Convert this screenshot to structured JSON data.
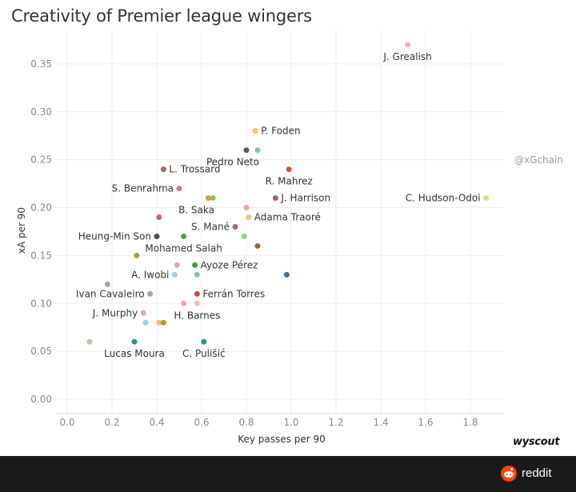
{
  "chart_data": {
    "type": "scatter",
    "title": "Creativity of Premier league wingers",
    "xlabel": "Key passes per 90",
    "ylabel": "xA per 90",
    "xlim": [
      -0.05,
      1.95
    ],
    "ylim": [
      -0.015,
      0.385
    ],
    "xticks": [
      "0.0",
      "0.2",
      "0.4",
      "0.6",
      "0.8",
      "1.0",
      "1.2",
      "1.4",
      "1.6",
      "1.8"
    ],
    "yticks": [
      "0.00",
      "0.05",
      "0.10",
      "0.15",
      "0.20",
      "0.25",
      "0.30",
      "0.35"
    ],
    "grid": true,
    "labeled_points": [
      {
        "label": "J. Grealish",
        "x": 1.52,
        "y": 0.37,
        "color": "#f2b2bf",
        "anchor": "below"
      },
      {
        "label": "P. Foden",
        "x": 0.84,
        "y": 0.28,
        "color": "#edc95e",
        "anchor": "right"
      },
      {
        "label": "Pedro Neto",
        "x": 0.85,
        "y": 0.26,
        "color": "#86c2b5",
        "anchor": "below-left"
      },
      {
        "label": "L. Trossard",
        "x": 0.43,
        "y": 0.24,
        "color": "#9c6b62",
        "anchor": "right"
      },
      {
        "label": "R. Mahrez",
        "x": 0.99,
        "y": 0.24,
        "color": "#d94f4f",
        "anchor": "below"
      },
      {
        "label": "S. Benrahma",
        "x": 0.5,
        "y": 0.22,
        "color": "#d47591",
        "anchor": "left"
      },
      {
        "label": "J. Harrison",
        "x": 0.93,
        "y": 0.21,
        "color": "#a35c8b",
        "anchor": "right"
      },
      {
        "label": "C. Hudson-Odoi",
        "x": 1.87,
        "y": 0.21,
        "color": "#e8d97a",
        "anchor": "left"
      },
      {
        "label": "B. Saka",
        "x": 0.65,
        "y": 0.21,
        "color": "#8fbf6a",
        "anchor": "below-left"
      },
      {
        "label": "Adama Traoré",
        "x": 0.81,
        "y": 0.19,
        "color": "#f2be7a",
        "anchor": "right"
      },
      {
        "label": "S. Mané",
        "x": 0.75,
        "y": 0.18,
        "color": "#a8658f",
        "anchor": "left"
      },
      {
        "label": "Heung-Min Son",
        "x": 0.4,
        "y": 0.17,
        "color": "#4a4a5a",
        "anchor": "left"
      },
      {
        "label": "Mohamed Salah",
        "x": 0.52,
        "y": 0.17,
        "color": "#4f9a4f",
        "anchor": "below"
      },
      {
        "label": "Ayoze Pérez",
        "x": 0.57,
        "y": 0.14,
        "color": "#3f9a4f",
        "anchor": "right"
      },
      {
        "label": "A. Iwobi",
        "x": 0.48,
        "y": 0.13,
        "color": "#a9cbe3",
        "anchor": "left"
      },
      {
        "label": "Ivan Cavaleiro",
        "x": 0.37,
        "y": 0.11,
        "color": "#a6a6a6",
        "anchor": "left"
      },
      {
        "label": "Ferrán Torres",
        "x": 0.58,
        "y": 0.11,
        "color": "#d9463f",
        "anchor": "right"
      },
      {
        "label": "J. Murphy",
        "x": 0.34,
        "y": 0.09,
        "color": "#d9a6c9",
        "anchor": "left"
      },
      {
        "label": "H. Barnes",
        "x": 0.58,
        "y": 0.1,
        "color": "#f2b8b8",
        "anchor": "below"
      },
      {
        "label": "Lucas Moura",
        "x": 0.3,
        "y": 0.06,
        "color": "#2e8e8e",
        "anchor": "below"
      },
      {
        "label": "C. Pulišić",
        "x": 0.61,
        "y": 0.06,
        "color": "#2e8e8e",
        "anchor": "below"
      }
    ],
    "unlabeled_points": [
      {
        "x": 0.8,
        "y": 0.26,
        "color": "#5a5a5a"
      },
      {
        "x": 0.41,
        "y": 0.19,
        "color": "#c9607a"
      },
      {
        "x": 0.63,
        "y": 0.21,
        "color": "#e39a4a"
      },
      {
        "x": 0.8,
        "y": 0.2,
        "color": "#f2a6a6"
      },
      {
        "x": 0.79,
        "y": 0.17,
        "color": "#93cf7a"
      },
      {
        "x": 0.85,
        "y": 0.16,
        "color": "#8b6a4a"
      },
      {
        "x": 0.31,
        "y": 0.15,
        "color": "#b39a2e"
      },
      {
        "x": 0.98,
        "y": 0.13,
        "color": "#4a6a99"
      },
      {
        "x": 0.18,
        "y": 0.12,
        "color": "#a6a6a6"
      },
      {
        "x": 0.49,
        "y": 0.14,
        "color": "#d9a6c9"
      },
      {
        "x": 0.58,
        "y": 0.13,
        "color": "#86c2b5"
      },
      {
        "x": 0.52,
        "y": 0.1,
        "color": "#f2a6a6"
      },
      {
        "x": 0.35,
        "y": 0.08,
        "color": "#a9cbe3"
      },
      {
        "x": 0.41,
        "y": 0.08,
        "color": "#f2be7a"
      },
      {
        "x": 0.43,
        "y": 0.08,
        "color": "#b39a2e"
      },
      {
        "x": 0.1,
        "y": 0.06,
        "color": "#d9b8a6"
      }
    ]
  },
  "watermark": "@xGchain",
  "brand": "wyscout",
  "footer": {
    "site": "reddit"
  }
}
